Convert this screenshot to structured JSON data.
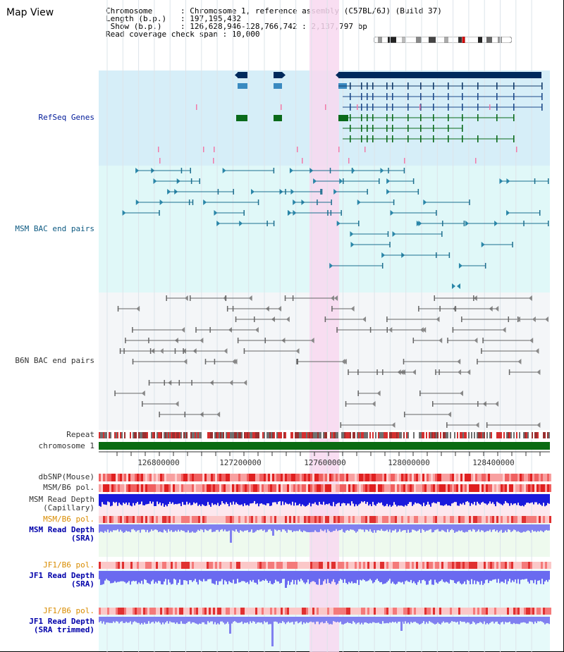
{
  "title": "Map View",
  "info": {
    "line1": "Chromosome      : Chromosome 1, reference assembly (C57BL/6J) (Build 37)",
    "line2": "Length (b.p.)   : 197,195,432",
    "line3": " Show (b.p.)    : 126,628,946-128,766,742 : 2,137,797 bp",
    "line4": "Read coverage check span : 10,000"
  },
  "tracks": {
    "refseq": "RefSeq Genes",
    "msm_bac": "MSM BAC end pairs",
    "b6n_bac": "B6N BAC end pairs",
    "repeat": "Repeat",
    "chromosome": "chromosome 1",
    "dbsnp": "dbSNP(Mouse)",
    "msm_b6_pol": "MSM/B6 pol.",
    "msm_depth_cap_1": "MSM Read Depth",
    "msm_depth_cap_2": "(Capillary)",
    "msm_b6_pol_2": "MSM/B6 pol.",
    "msm_depth_sra_1": "MSM Read Depth",
    "msm_depth_sra_2": "(SRA)",
    "jf1_b6_pol": "JF1/B6 pol.",
    "jf1_depth_sra_1": "JF1 Read Depth",
    "jf1_depth_sra_2": "(SRA)",
    "jf1_b6_pol_2": "JF1/B6 pol.",
    "jf1_depth_trim_1": "JF1 Read Depth",
    "jf1_depth_trim_2": "(SRA trimmed)"
  },
  "axis": {
    "ticks": [
      "126800000",
      "127200000",
      "127600000",
      "128000000",
      "128400000"
    ]
  },
  "colors": {
    "refseq_bg": "#d6eef8",
    "msm_bg": "#e0f8f8",
    "b6n_bg": "#f4f6f8",
    "highlight": "#f8d8f0",
    "gene_dark": "#002a5c",
    "gene_light": "#3a8ac0",
    "gene_green": "#0a6a1a",
    "msm_line": "#1d6f8f",
    "b6n_line": "#666666",
    "chrom_bar": "#0b6b12",
    "depth_blue": "#1a1adc",
    "depth_light": "#8080f0"
  }
}
